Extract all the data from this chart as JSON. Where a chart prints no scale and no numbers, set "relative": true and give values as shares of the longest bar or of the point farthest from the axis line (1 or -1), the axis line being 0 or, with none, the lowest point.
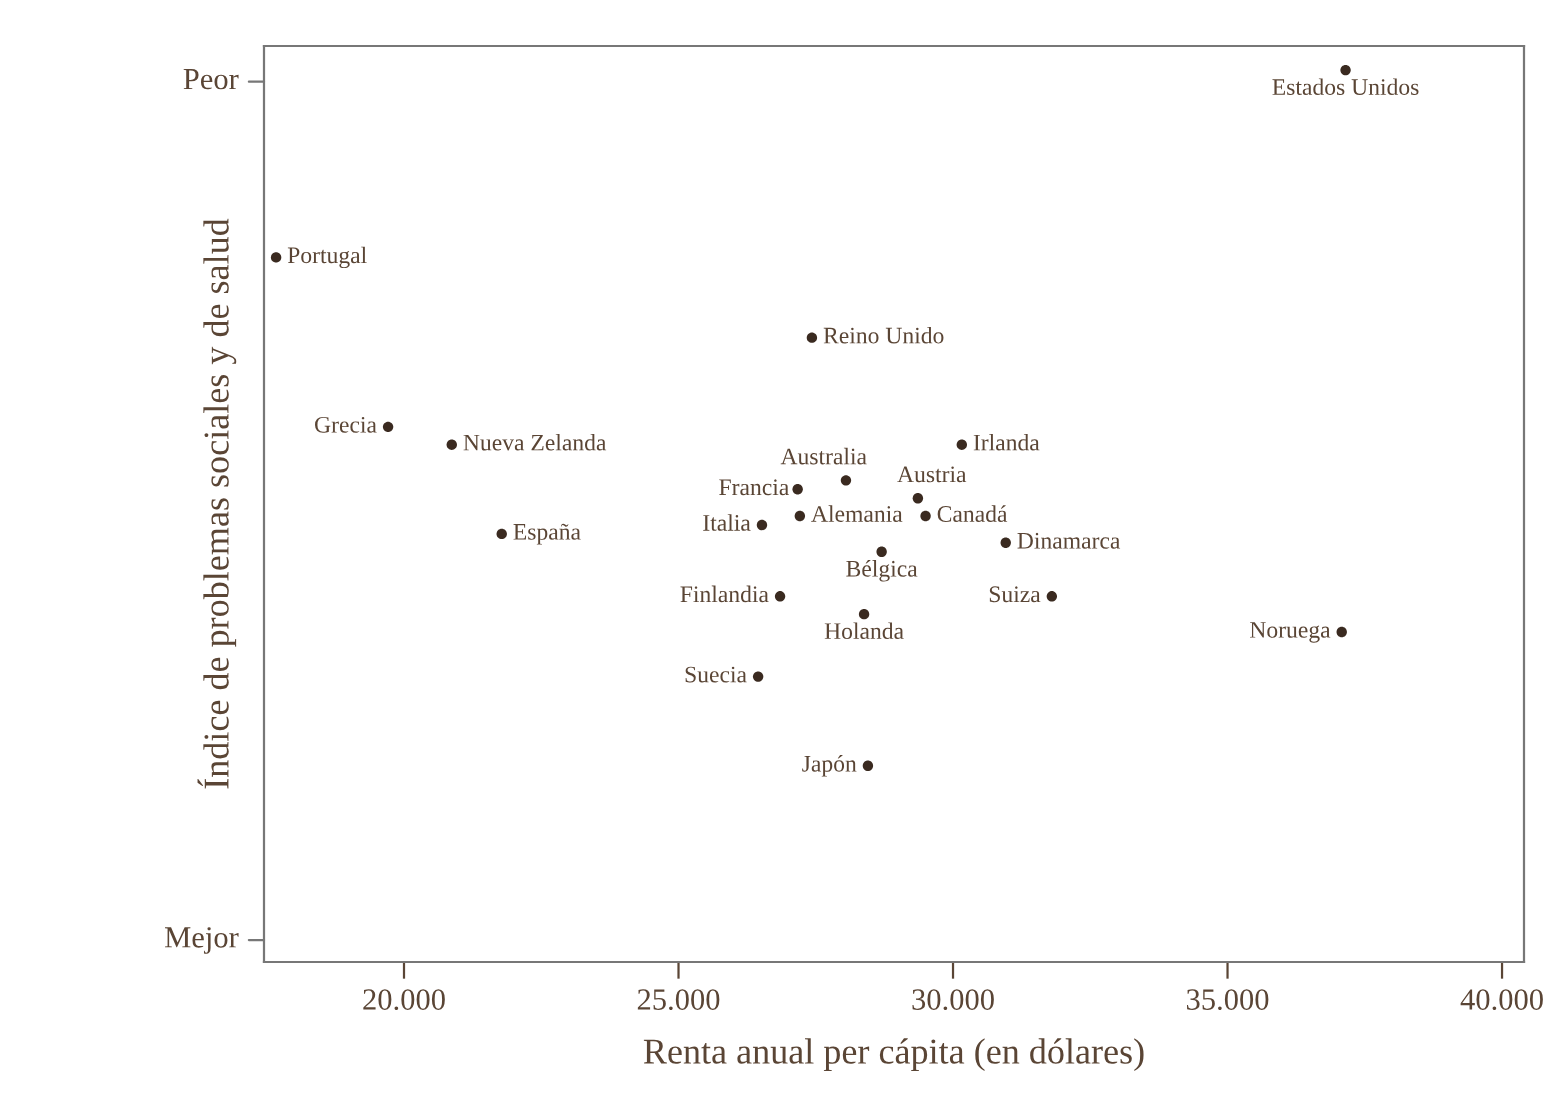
{
  "chart_data": {
    "type": "scatter",
    "xlabel": "Renta anual per cápita (en dólares)",
    "ylabel": "Índice de problemas sociales y de salud",
    "relative": true,
    "xlim": [
      17450,
      40400
    ],
    "xticks": [
      {
        "value": 20000,
        "label": "20.000"
      },
      {
        "value": 25000,
        "label": "25.000"
      },
      {
        "value": 30000,
        "label": "30.000"
      },
      {
        "value": 35000,
        "label": "35.000"
      },
      {
        "value": 40000,
        "label": "40.000"
      }
    ],
    "grid": false,
    "marker": "circle",
    "series": [
      {
        "color": "#3a2a20",
        "x": [
          37150,
          17670,
          27430,
          19710,
          20870,
          28050,
          27170,
          27210,
          29360,
          29500,
          30160,
          26520,
          30960,
          28700,
          26850,
          28380,
          31800,
          37080,
          26450,
          28450,
          21780
        ],
        "values": [
          1.0,
          0.79,
          0.7,
          0.6,
          0.58,
          0.54,
          0.53,
          0.5,
          0.52,
          0.5,
          0.58,
          0.49,
          0.47,
          0.46,
          0.41,
          0.39,
          0.41,
          0.37,
          0.32,
          0.22,
          0.48
        ]
      }
    ],
    "annotations": [
      "Peor",
      "Mejor",
      {
        "text": "Estados Unidos",
        "x": 37150,
        "y": 1.0
      },
      {
        "text": "Portugal",
        "x": 17670,
        "y": 0.79
      },
      {
        "text": "Reino Unido",
        "x": 27430,
        "y": 0.7
      },
      {
        "text": "Grecia",
        "x": 19710,
        "y": 0.6
      },
      {
        "text": "Nueva Zelanda",
        "x": 20870,
        "y": 0.58
      },
      {
        "text": "Australia",
        "x": 28050,
        "y": 0.54
      },
      {
        "text": "Francia",
        "x": 27170,
        "y": 0.53
      },
      {
        "text": "Alemania",
        "x": 27210,
        "y": 0.5
      },
      {
        "text": "Austria",
        "x": 29360,
        "y": 0.52
      },
      {
        "text": "Canadá",
        "x": 29500,
        "y": 0.5
      },
      {
        "text": "Irlanda",
        "x": 30160,
        "y": 0.58
      },
      {
        "text": "Italia",
        "x": 26520,
        "y": 0.49
      },
      {
        "text": "Dinamarca",
        "x": 30960,
        "y": 0.47
      },
      {
        "text": "Bélgica",
        "x": 28700,
        "y": 0.46
      },
      {
        "text": "Finlandia",
        "x": 26850,
        "y": 0.41
      },
      {
        "text": "Holanda",
        "x": 28380,
        "y": 0.39
      },
      {
        "text": "Suiza",
        "x": 31800,
        "y": 0.41
      },
      {
        "text": "Noruega",
        "x": 37080,
        "y": 0.37
      },
      {
        "text": "Suecia",
        "x": 26450,
        "y": 0.32
      },
      {
        "text": "Japón",
        "x": 28450,
        "y": 0.22
      },
      {
        "text": "España",
        "x": 21780,
        "y": 0.48
      }
    ]
  }
}
